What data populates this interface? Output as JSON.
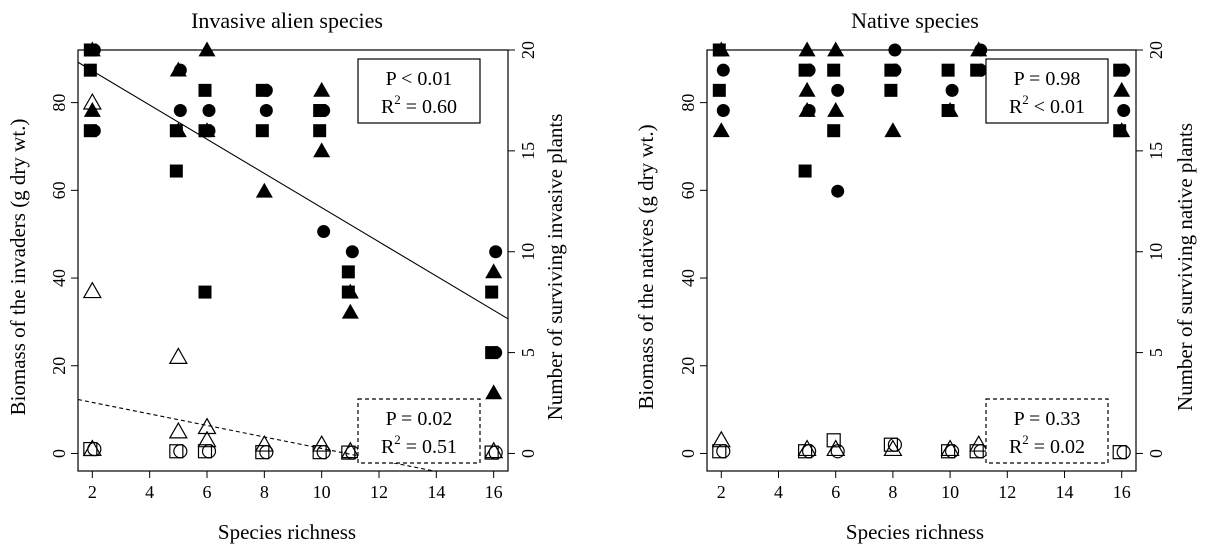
{
  "chart_data": [
    {
      "type": "scatter",
      "title": "Invasive alien species",
      "xlabel": "Species richness",
      "ylabel": "Biomass of the invaders (g dry wt.)",
      "ylabel_right": "Number of surviving invasive plants",
      "xlim": [
        1.5,
        16.5
      ],
      "ylim": [
        -4,
        92
      ],
      "ylim_right": [
        -0.87,
        20
      ],
      "x_ticks": [
        "2",
        "4",
        "6",
        "8",
        "10",
        "12",
        "14",
        "16"
      ],
      "y_ticks": [
        "0",
        "20",
        "40",
        "60",
        "80"
      ],
      "y_ticks_right": [
        "0",
        "5",
        "10",
        "15",
        "20"
      ],
      "series": [
        {
          "marker": "triangle",
          "fill": "filled",
          "axis": "right",
          "x": [
            2,
            2,
            5,
            5,
            6,
            6,
            8,
            10,
            10,
            11,
            11,
            16,
            16
          ],
          "y": [
            20,
            17,
            19,
            16,
            20,
            16,
            13,
            18,
            15,
            8,
            7,
            9,
            3
          ]
        },
        {
          "marker": "square",
          "fill": "filled",
          "axis": "right",
          "x": [
            2,
            2,
            2,
            5,
            5,
            6,
            6,
            6,
            8,
            8,
            10,
            10,
            11,
            11,
            16,
            16
          ],
          "y": [
            20,
            19,
            16,
            16,
            14,
            18,
            16,
            8,
            18,
            16,
            17,
            16,
            9,
            8,
            8,
            5
          ]
        },
        {
          "marker": "circle",
          "fill": "filled",
          "axis": "right",
          "x": [
            2,
            2,
            5,
            5,
            6,
            6,
            8,
            8,
            10,
            10,
            11,
            16,
            16
          ],
          "y": [
            20,
            16,
            19,
            17,
            17,
            16,
            18,
            17,
            17,
            11,
            10,
            10,
            5
          ]
        },
        {
          "marker": "triangle",
          "fill": "open",
          "axis": "left",
          "x": [
            2,
            2,
            2,
            5,
            5,
            6,
            6,
            8,
            10,
            11,
            16
          ],
          "y": [
            80,
            37,
            1,
            22,
            5,
            6,
            3,
            2,
            2,
            0.5,
            0.5
          ]
        },
        {
          "marker": "square",
          "fill": "open",
          "axis": "left",
          "x": [
            2,
            5,
            6,
            8,
            10,
            11,
            16
          ],
          "y": [
            1,
            0.5,
            0.5,
            0.3,
            0.3,
            0.2,
            0.2
          ]
        },
        {
          "marker": "circle",
          "fill": "open",
          "axis": "left",
          "x": [
            2,
            5,
            6,
            8,
            10,
            11,
            16
          ],
          "y": [
            1,
            0.5,
            0.5,
            0.3,
            0.3,
            0.2,
            0.2
          ]
        }
      ],
      "fit_lines": [
        {
          "style": "solid",
          "x": [
            1.5,
            16.5
          ],
          "y": [
            89.2,
            30.7
          ]
        },
        {
          "style": "dashed",
          "x": [
            1.5,
            16.5
          ],
          "y": [
            12.3,
            -7.4
          ]
        }
      ],
      "annotations": [
        {
          "style": "solid",
          "p": "P < 0.01",
          "r2": "R",
          "r2_sup": "2",
          "r2_val": " = 0.60",
          "position": "top-right"
        },
        {
          "style": "dashed",
          "p": "P = 0.02",
          "r2": "R",
          "r2_sup": "2",
          "r2_val": " = 0.51",
          "position": "bottom-right"
        }
      ]
    },
    {
      "type": "scatter",
      "title": "Native species",
      "xlabel": "Species richness",
      "ylabel": "Biomass of the natives (g dry wt.)",
      "ylabel_right": "Number of surviving native plants",
      "xlim": [
        1.5,
        16.5
      ],
      "ylim": [
        -4,
        92
      ],
      "ylim_right": [
        -0.87,
        20
      ],
      "x_ticks": [
        "2",
        "4",
        "6",
        "8",
        "10",
        "12",
        "14",
        "16"
      ],
      "y_ticks": [
        "0",
        "20",
        "40",
        "60",
        "80"
      ],
      "y_ticks_right": [
        "0",
        "5",
        "10",
        "15",
        "20"
      ],
      "series": [
        {
          "marker": "triangle",
          "fill": "filled",
          "axis": "right",
          "x": [
            2,
            2,
            5,
            5,
            5,
            6,
            6,
            8,
            10,
            11,
            16,
            16
          ],
          "y": [
            20,
            16,
            20,
            18,
            17,
            17,
            20,
            16,
            17,
            20,
            18,
            16
          ]
        },
        {
          "marker": "square",
          "fill": "filled",
          "axis": "right",
          "x": [
            2,
            2,
            5,
            5,
            6,
            6,
            8,
            8,
            10,
            10,
            11,
            16,
            16
          ],
          "y": [
            20,
            18,
            19,
            14,
            19,
            16,
            19,
            18,
            19,
            17,
            19,
            19,
            16
          ]
        },
        {
          "marker": "circle",
          "fill": "filled",
          "axis": "right",
          "x": [
            2,
            2,
            5,
            5,
            6,
            6,
            8,
            8,
            10,
            11,
            11,
            16,
            16
          ],
          "y": [
            19,
            17,
            19,
            17,
            18,
            13,
            20,
            19,
            18,
            19,
            20,
            19,
            17
          ]
        },
        {
          "marker": "triangle",
          "fill": "open",
          "axis": "left",
          "x": [
            2,
            5,
            6,
            8,
            10,
            11
          ],
          "y": [
            3,
            1,
            1,
            1,
            1,
            2
          ]
        },
        {
          "marker": "square",
          "fill": "open",
          "axis": "left",
          "x": [
            2,
            5,
            6,
            8,
            10,
            11,
            16
          ],
          "y": [
            0.5,
            0.5,
            3,
            2,
            0.5,
            0.5,
            0.3
          ]
        },
        {
          "marker": "circle",
          "fill": "open",
          "axis": "left",
          "x": [
            2,
            5,
            6,
            8,
            10,
            11,
            16
          ],
          "y": [
            0.5,
            0.5,
            0.5,
            2,
            0.5,
            0.5,
            0.3
          ]
        }
      ],
      "fit_lines": [],
      "annotations": [
        {
          "style": "solid",
          "p": "P = 0.98",
          "r2": "R",
          "r2_sup": "2",
          "r2_val": " < 0.01",
          "position": "top-right"
        },
        {
          "style": "dashed",
          "p": "P = 0.33",
          "r2": "R",
          "r2_sup": "2",
          "r2_val": " = 0.02",
          "position": "bottom-right"
        }
      ]
    }
  ]
}
